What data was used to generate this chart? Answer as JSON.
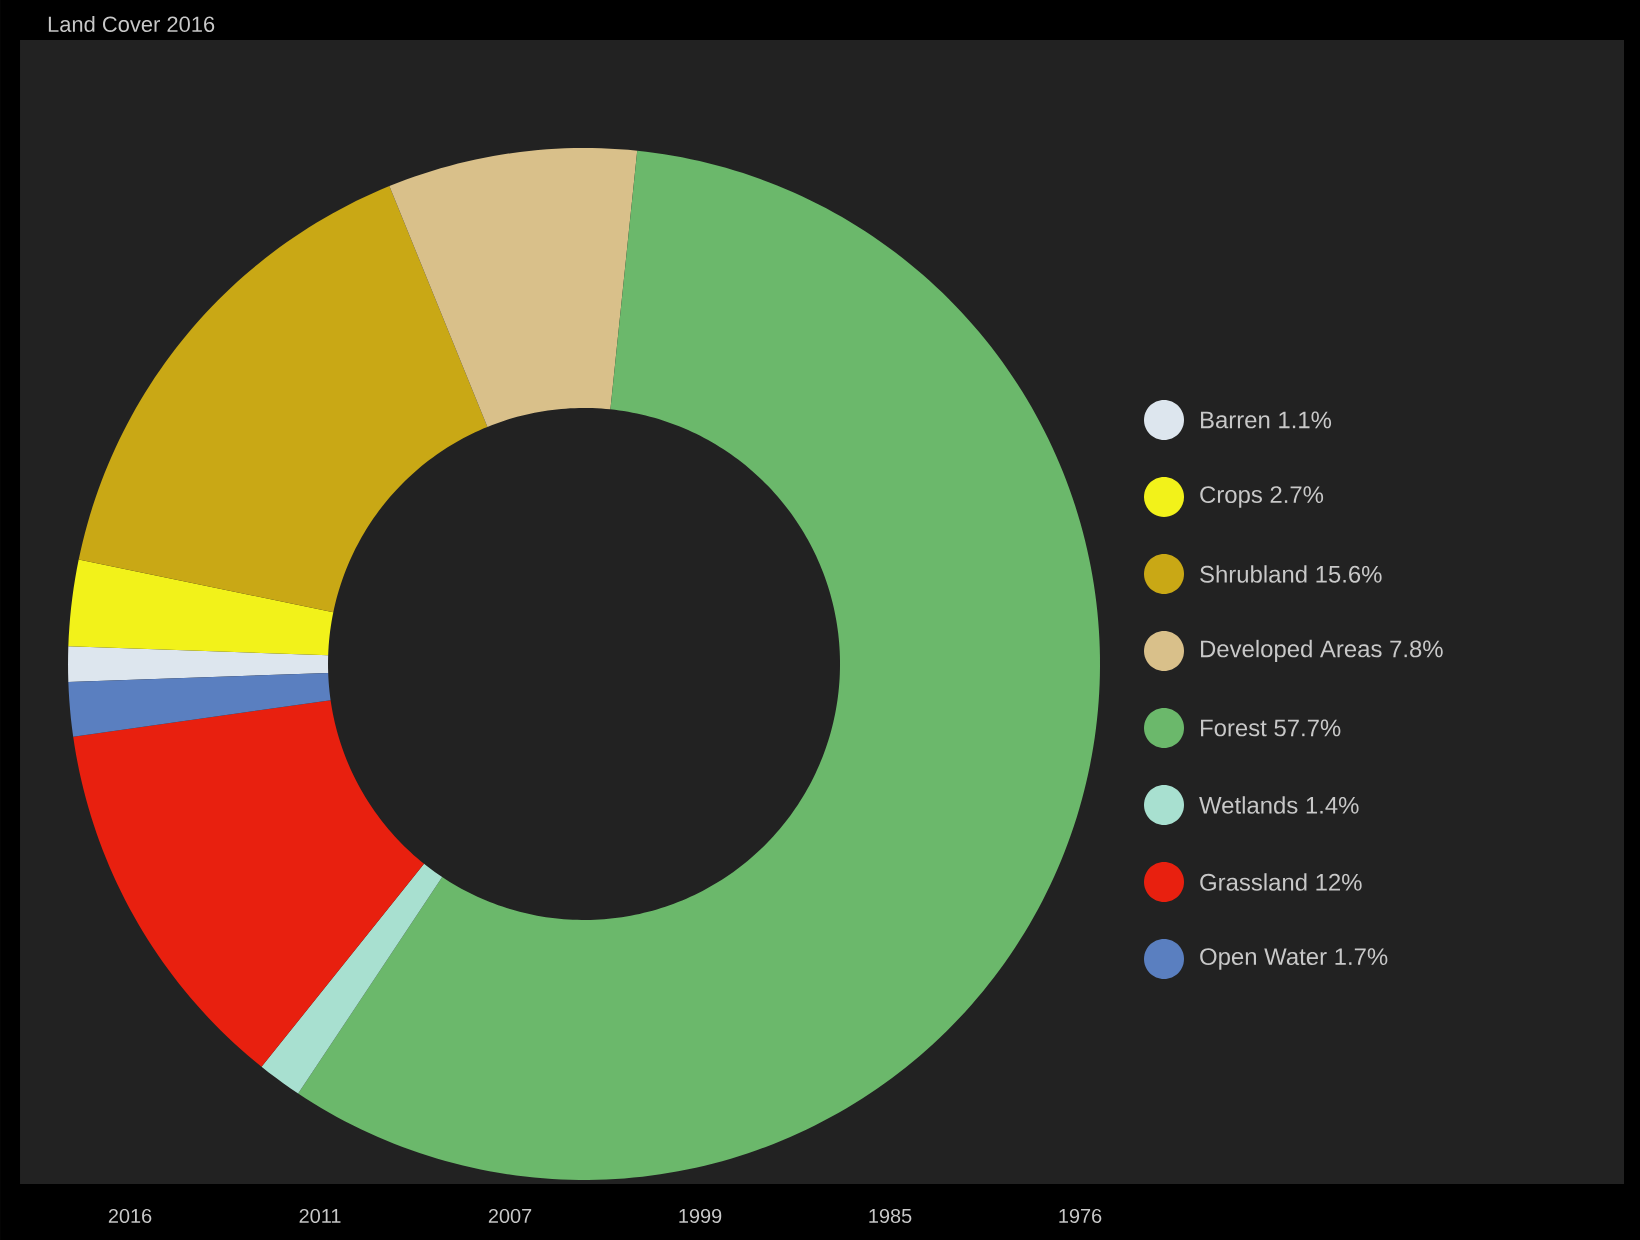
{
  "chart_data": {
    "type": "donut",
    "title": "Land Cover 2016",
    "categories": [
      "Barren 1.1%",
      "Crops 2.7%",
      "Shrubland 15.6%",
      "Developed Areas 7.8%",
      "Forest 57.7%",
      "Wetlands 1.4%",
      "Grassland 12%",
      "Open Water 1.7%"
    ],
    "values": [
      1.1,
      2.7,
      15.6,
      7.8,
      57.7,
      1.4,
      12,
      1.7
    ],
    "colors": [
      "#dde6ee",
      "#f2f21a",
      "#c9a815",
      "#d9c08a",
      "#6bb86b",
      "#a8e0d0",
      "#e8200f",
      "#5a7fc0"
    ],
    "legend": "right",
    "annotations": [
      "2016",
      "2011",
      "2007",
      "1999",
      "1985",
      "1976"
    ]
  }
}
